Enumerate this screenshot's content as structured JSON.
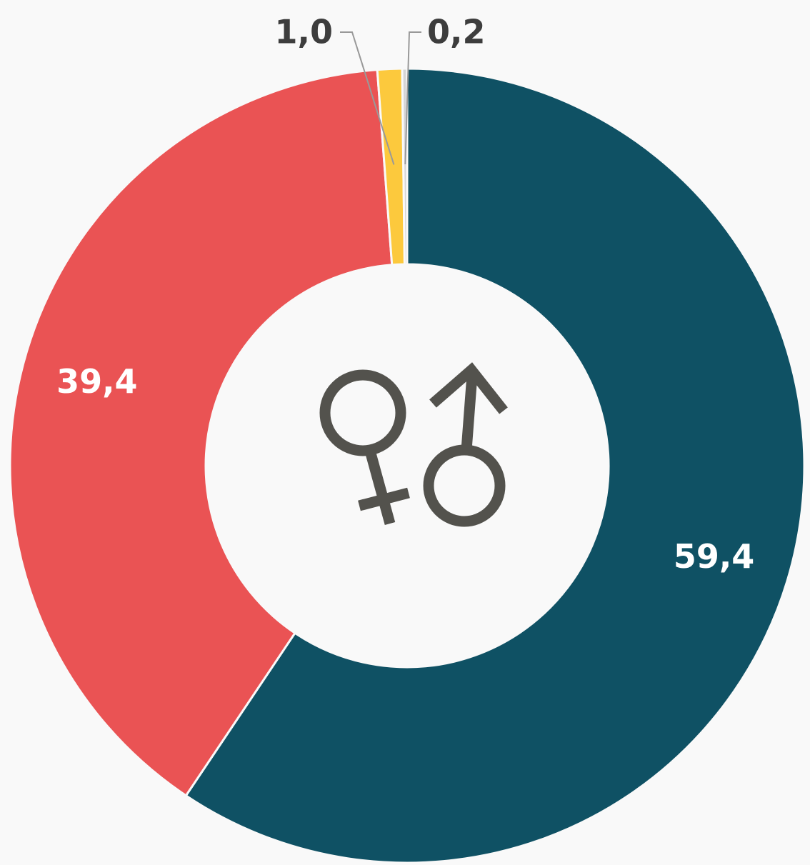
{
  "chart_data": {
    "type": "donut",
    "values": [
      59.4,
      39.4,
      1.0,
      0.2
    ],
    "value_labels": [
      "59,4",
      "39,4",
      "1,0",
      "0,2"
    ],
    "colors": [
      "#0f5164",
      "#ea5354",
      "#fcc93d",
      "#d5d5d5"
    ]
  }
}
